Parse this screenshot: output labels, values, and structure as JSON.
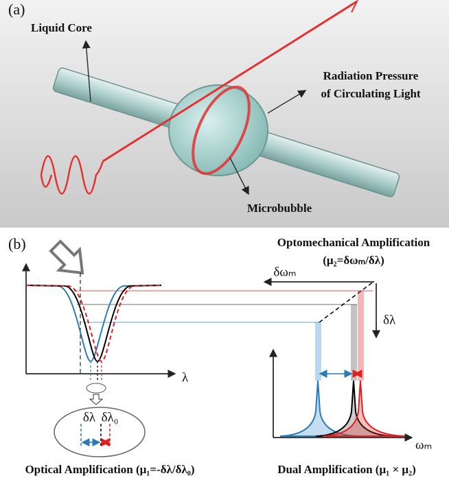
{
  "panel_a": {
    "label": "(a)",
    "liquid_core": "Liquid Core",
    "radiation_pressure": [
      "Radiation Pressure",
      "of Circulating Light"
    ],
    "microbubble": "Microbubble"
  },
  "panel_b": {
    "label": "(b)",
    "optomechanical": [
      "Optomechanical Amplification",
      "(μ₂=δωₘ/δλ)"
    ],
    "delta_omega": "δωₘ",
    "delta_lambda": "δλ",
    "lambda_axis": "λ",
    "omega_axis": "ωₘ",
    "inset": [
      "δλ",
      "δλ₀"
    ],
    "optical": "Optical Amplification (μ₁=-δλ/δλ₀)",
    "dual": "Dual Amplification (μ₁ × μ₂)"
  }
}
